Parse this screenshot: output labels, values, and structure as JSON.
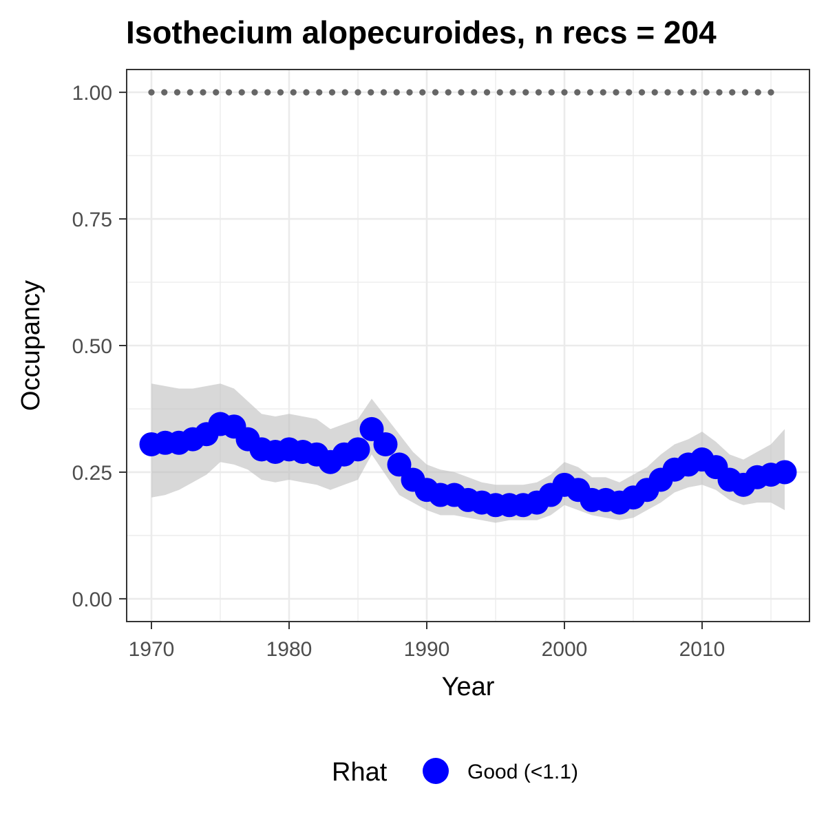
{
  "chart_data": {
    "type": "line",
    "title": "Isothecium alopecuroides, n recs = 204",
    "xlabel": "Year",
    "ylabel": "Occupancy",
    "xlim": [
      1968.2,
      2017.8
    ],
    "ylim": [
      -0.045,
      1.045
    ],
    "x_ticks": [
      1970,
      1980,
      1990,
      2000,
      2010
    ],
    "x_tick_labels": [
      "1970",
      "1980",
      "1990",
      "2000",
      "2010"
    ],
    "y_ticks": [
      0,
      0.25,
      0.5,
      0.75,
      1.0
    ],
    "y_tick_labels": [
      "0.00",
      "0.25",
      "0.50",
      "0.75",
      "1.00"
    ],
    "grid": true,
    "legend": {
      "title": "Rhat",
      "position": "bottom",
      "entries": [
        {
          "label": "Good (<1.1)",
          "color": "#0000ff"
        }
      ]
    },
    "colors": {
      "points": "#0000ff",
      "ribbon": "#bebebe",
      "reference": "#666666",
      "panel_border": "#333333",
      "grid": "#ebebeb"
    },
    "reference_line": {
      "y": 1.0,
      "x_start": 1970,
      "x_end": 2015,
      "style": "dotted"
    },
    "x": [
      1970,
      1971,
      1972,
      1973,
      1974,
      1975,
      1976,
      1977,
      1978,
      1979,
      1980,
      1981,
      1982,
      1983,
      1984,
      1985,
      1986,
      1987,
      1988,
      1989,
      1990,
      1991,
      1992,
      1993,
      1994,
      1995,
      1996,
      1997,
      1998,
      1999,
      2000,
      2001,
      2002,
      2003,
      2004,
      2005,
      2006,
      2007,
      2008,
      2009,
      2010,
      2011,
      2012,
      2013,
      2014,
      2015,
      2016
    ],
    "series": [
      {
        "name": "Good (<1.1)",
        "values": [
          0.305,
          0.308,
          0.308,
          0.315,
          0.325,
          0.345,
          0.34,
          0.315,
          0.295,
          0.29,
          0.295,
          0.29,
          0.285,
          0.27,
          0.285,
          0.295,
          0.335,
          0.305,
          0.265,
          0.235,
          0.215,
          0.205,
          0.205,
          0.195,
          0.19,
          0.185,
          0.185,
          0.185,
          0.19,
          0.205,
          0.225,
          0.215,
          0.195,
          0.195,
          0.19,
          0.2,
          0.215,
          0.235,
          0.255,
          0.265,
          0.275,
          0.26,
          0.235,
          0.225,
          0.24,
          0.245,
          0.25
        ],
        "lower": [
          0.2,
          0.205,
          0.215,
          0.23,
          0.245,
          0.27,
          0.265,
          0.255,
          0.235,
          0.23,
          0.235,
          0.23,
          0.225,
          0.215,
          0.225,
          0.235,
          0.285,
          0.245,
          0.205,
          0.19,
          0.175,
          0.165,
          0.165,
          0.16,
          0.155,
          0.15,
          0.155,
          0.155,
          0.155,
          0.165,
          0.185,
          0.175,
          0.165,
          0.16,
          0.155,
          0.16,
          0.175,
          0.19,
          0.21,
          0.22,
          0.225,
          0.215,
          0.195,
          0.185,
          0.19,
          0.19,
          0.175
        ],
        "upper": [
          0.425,
          0.42,
          0.415,
          0.415,
          0.42,
          0.425,
          0.415,
          0.39,
          0.365,
          0.36,
          0.365,
          0.36,
          0.355,
          0.335,
          0.345,
          0.355,
          0.395,
          0.36,
          0.325,
          0.29,
          0.265,
          0.255,
          0.25,
          0.24,
          0.23,
          0.225,
          0.225,
          0.225,
          0.23,
          0.245,
          0.27,
          0.26,
          0.24,
          0.24,
          0.23,
          0.245,
          0.26,
          0.285,
          0.305,
          0.315,
          0.33,
          0.31,
          0.285,
          0.275,
          0.29,
          0.305,
          0.335
        ]
      }
    ]
  }
}
